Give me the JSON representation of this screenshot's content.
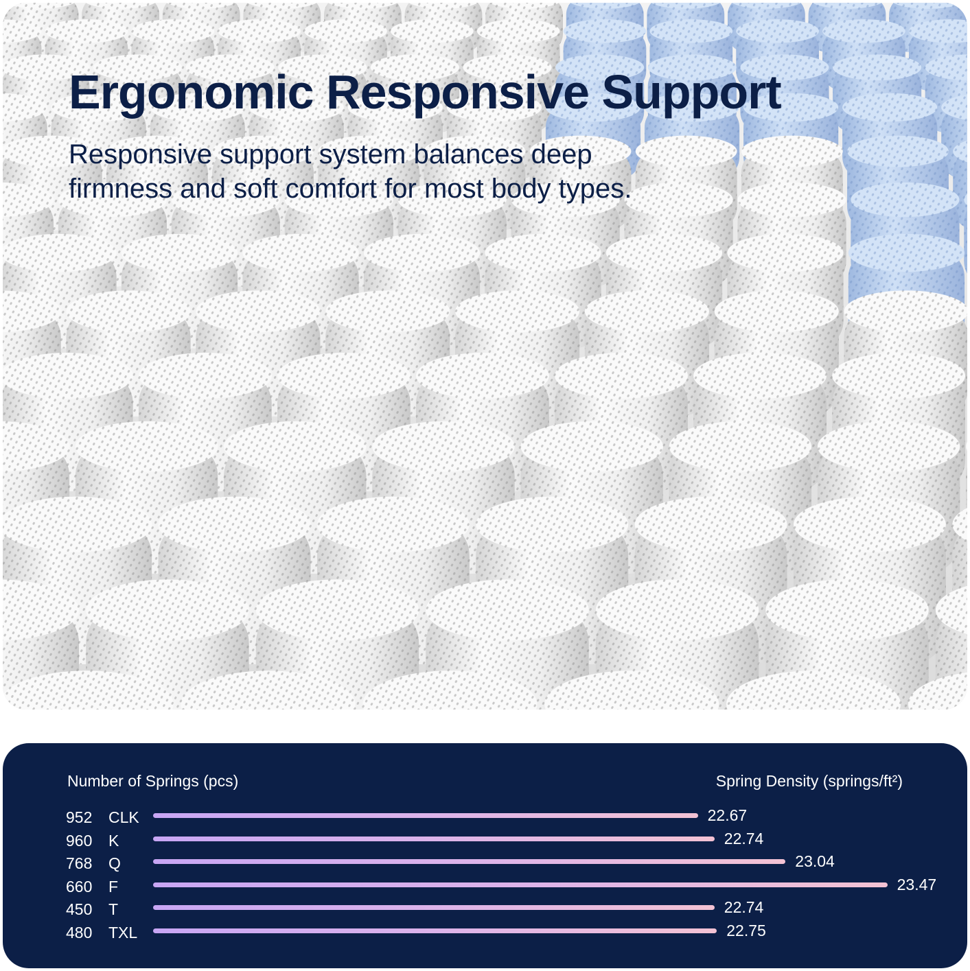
{
  "hero": {
    "title": "Ergonomic Responsive Support",
    "subtitle": "Responsive support system balances deep firmness and soft comfort for most body types."
  },
  "colors": {
    "navy": "#0c1f47",
    "bar_start": "#c8a6f4",
    "bar_end": "#f3c2d4",
    "coil_blue": "#b7cdea",
    "coil_white": "#f4f4f4"
  },
  "chart_data": {
    "type": "bar",
    "left_label": "Number of Springs (pcs)",
    "right_label": "Spring Density (springs/ft²)",
    "categories": [
      "CLK",
      "K",
      "Q",
      "F",
      "T",
      "TXL"
    ],
    "springs": [
      "952",
      "960",
      "768",
      "660",
      "450",
      "480"
    ],
    "density": [
      22.67,
      22.74,
      23.04,
      23.47,
      22.74,
      22.75
    ],
    "density_labels": [
      "22.67",
      "22.74",
      "23.04",
      "23.47",
      "22.74",
      "22.75"
    ]
  }
}
